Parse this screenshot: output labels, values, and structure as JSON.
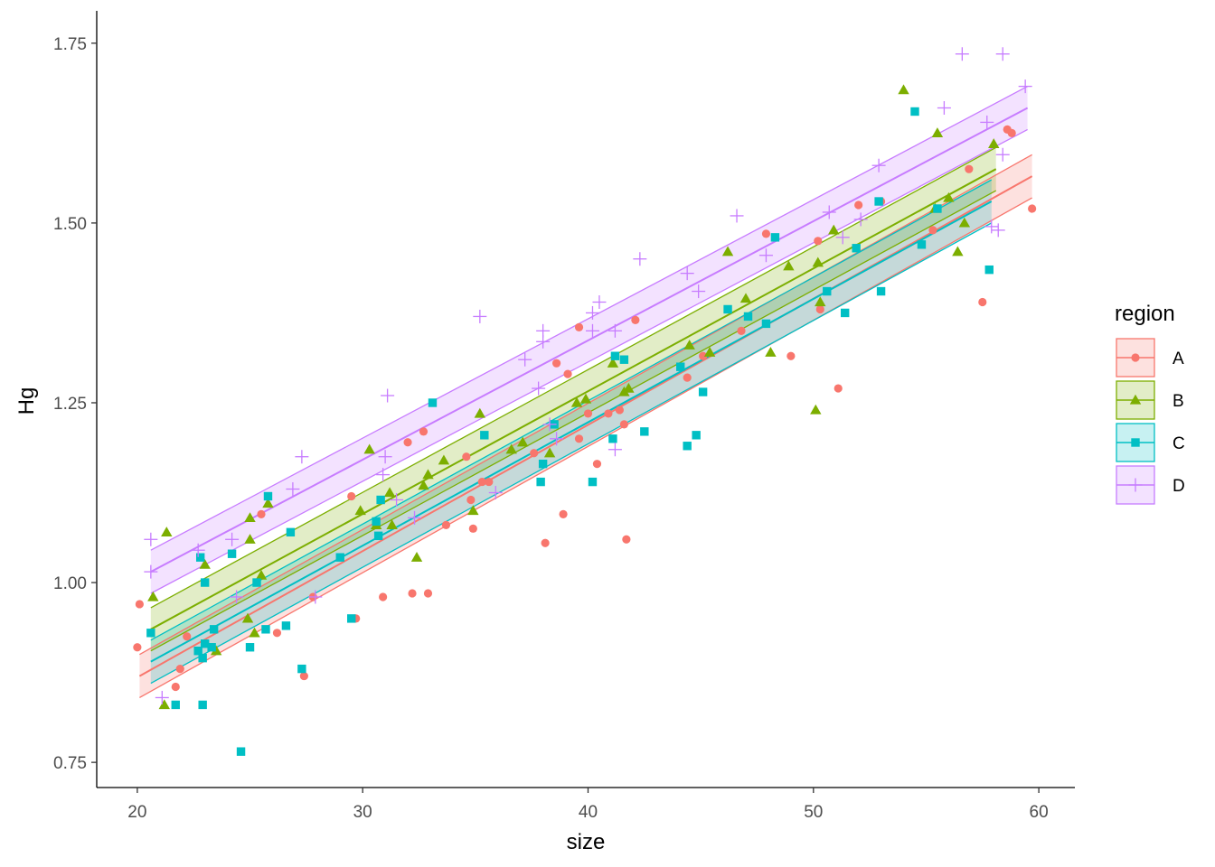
{
  "chart_data": {
    "type": "scatter",
    "xlabel": "size",
    "ylabel": "Hg",
    "xlim": [
      18.2,
      61.6
    ],
    "ylim": [
      0.715,
      1.795
    ],
    "xticks": [
      20,
      30,
      40,
      50,
      60
    ],
    "xtick_labels": [
      "20",
      "30",
      "40",
      "50",
      "60"
    ],
    "yticks": [
      0.75,
      1.0,
      1.25,
      1.5,
      1.75
    ],
    "ytick_labels": [
      "0.75",
      "1.00",
      "1.25",
      "1.50",
      "1.75"
    ],
    "grid": false,
    "legend": {
      "title": "region",
      "position": "right"
    },
    "series": [
      {
        "name": "A",
        "color": "#F8766D",
        "marker": "circle",
        "fit": {
          "x": [
            20.1,
            59.7
          ],
          "y": [
            0.87,
            1.565
          ],
          "band_lower": [
            0.84,
            1.535
          ],
          "band_upper": [
            0.9,
            1.595
          ]
        },
        "points": [
          [
            20.1,
            0.97
          ],
          [
            20.0,
            0.91
          ],
          [
            21.7,
            0.855
          ],
          [
            21.9,
            0.88
          ],
          [
            22.2,
            0.925
          ],
          [
            25.5,
            1.095
          ],
          [
            26.2,
            0.93
          ],
          [
            27.4,
            0.87
          ],
          [
            27.8,
            0.98
          ],
          [
            29.5,
            1.12
          ],
          [
            29.7,
            0.95
          ],
          [
            30.9,
            0.98
          ],
          [
            32.0,
            1.195
          ],
          [
            32.2,
            0.985
          ],
          [
            32.7,
            1.21
          ],
          [
            32.9,
            0.985
          ],
          [
            33.7,
            1.08
          ],
          [
            34.6,
            1.175
          ],
          [
            34.8,
            1.115
          ],
          [
            34.9,
            1.075
          ],
          [
            35.6,
            1.14
          ],
          [
            38.1,
            1.055
          ],
          [
            38.6,
            1.305
          ],
          [
            38.9,
            1.095
          ],
          [
            39.1,
            1.29
          ],
          [
            39.6,
            1.2
          ],
          [
            39.6,
            1.355
          ],
          [
            40.0,
            1.235
          ],
          [
            40.4,
            1.165
          ],
          [
            40.9,
            1.235
          ],
          [
            41.4,
            1.24
          ],
          [
            41.6,
            1.22
          ],
          [
            41.7,
            1.06
          ],
          [
            42.1,
            1.365
          ],
          [
            44.4,
            1.285
          ],
          [
            45.1,
            1.315
          ],
          [
            46.8,
            1.35
          ],
          [
            47.9,
            1.485
          ],
          [
            49.0,
            1.315
          ],
          [
            50.2,
            1.475
          ],
          [
            51.1,
            1.27
          ],
          [
            52.0,
            1.525
          ],
          [
            53.0,
            1.53
          ],
          [
            55.3,
            1.49
          ],
          [
            56.9,
            1.575
          ],
          [
            57.5,
            1.39
          ],
          [
            58.6,
            1.63
          ],
          [
            58.8,
            1.625
          ],
          [
            59.7,
            1.52
          ],
          [
            50.3,
            1.38
          ],
          [
            35.3,
            1.14
          ],
          [
            37.6,
            1.18
          ]
        ]
      },
      {
        "name": "B",
        "color": "#7CAE00",
        "marker": "triangle",
        "fit": {
          "x": [
            20.6,
            58.1
          ],
          "y": [
            0.935,
            1.575
          ],
          "band_lower": [
            0.905,
            1.545
          ],
          "band_upper": [
            0.965,
            1.605
          ]
        },
        "points": [
          [
            20.7,
            0.98
          ],
          [
            21.3,
            1.07
          ],
          [
            21.2,
            0.83
          ],
          [
            23.0,
            1.025
          ],
          [
            23.5,
            0.905
          ],
          [
            24.9,
            0.95
          ],
          [
            25.0,
            1.06
          ],
          [
            25.0,
            1.09
          ],
          [
            25.2,
            0.93
          ],
          [
            25.5,
            1.01
          ],
          [
            25.8,
            1.11
          ],
          [
            29.9,
            1.1
          ],
          [
            30.3,
            1.185
          ],
          [
            30.6,
            1.08
          ],
          [
            31.2,
            1.125
          ],
          [
            31.3,
            1.08
          ],
          [
            32.4,
            1.035
          ],
          [
            32.7,
            1.135
          ],
          [
            32.9,
            1.15
          ],
          [
            33.6,
            1.17
          ],
          [
            34.9,
            1.1
          ],
          [
            35.2,
            1.235
          ],
          [
            36.6,
            1.185
          ],
          [
            37.1,
            1.195
          ],
          [
            38.3,
            1.18
          ],
          [
            39.5,
            1.25
          ],
          [
            39.9,
            1.255
          ],
          [
            41.1,
            1.305
          ],
          [
            41.6,
            1.265
          ],
          [
            41.8,
            1.27
          ],
          [
            44.5,
            1.33
          ],
          [
            45.4,
            1.32
          ],
          [
            46.2,
            1.46
          ],
          [
            47.0,
            1.395
          ],
          [
            48.1,
            1.32
          ],
          [
            48.9,
            1.44
          ],
          [
            50.1,
            1.24
          ],
          [
            50.3,
            1.39
          ],
          [
            50.2,
            1.445
          ],
          [
            50.9,
            1.49
          ],
          [
            54.0,
            1.685
          ],
          [
            55.5,
            1.625
          ],
          [
            56.0,
            1.535
          ],
          [
            56.4,
            1.46
          ],
          [
            56.7,
            1.5
          ],
          [
            58.0,
            1.61
          ],
          [
            55.4,
            1.52
          ]
        ]
      },
      {
        "name": "C",
        "color": "#00BFC4",
        "marker": "square",
        "fit": {
          "x": [
            20.6,
            57.9
          ],
          "y": [
            0.89,
            1.53
          ],
          "band_lower": [
            0.86,
            1.5
          ],
          "band_upper": [
            0.92,
            1.56
          ]
        },
        "points": [
          [
            20.6,
            0.93
          ],
          [
            21.7,
            0.83
          ],
          [
            22.7,
            0.905
          ],
          [
            22.8,
            1.035
          ],
          [
            22.9,
            0.895
          ],
          [
            23.0,
            0.915
          ],
          [
            23.0,
            1.0
          ],
          [
            22.9,
            0.83
          ],
          [
            23.4,
            0.935
          ],
          [
            24.2,
            1.04
          ],
          [
            24.6,
            0.765
          ],
          [
            25.0,
            0.91
          ],
          [
            25.3,
            1.0
          ],
          [
            25.7,
            0.935
          ],
          [
            25.8,
            1.12
          ],
          [
            26.6,
            0.94
          ],
          [
            26.8,
            1.07
          ],
          [
            27.3,
            0.88
          ],
          [
            29.0,
            1.035
          ],
          [
            29.5,
            0.95
          ],
          [
            30.6,
            1.085
          ],
          [
            30.7,
            1.065
          ],
          [
            30.8,
            1.115
          ],
          [
            33.1,
            1.25
          ],
          [
            35.4,
            1.205
          ],
          [
            37.9,
            1.14
          ],
          [
            38.0,
            1.165
          ],
          [
            38.5,
            1.22
          ],
          [
            40.2,
            1.14
          ],
          [
            41.1,
            1.2
          ],
          [
            41.2,
            1.315
          ],
          [
            41.6,
            1.31
          ],
          [
            42.5,
            1.21
          ],
          [
            44.1,
            1.3
          ],
          [
            44.4,
            1.19
          ],
          [
            44.8,
            1.205
          ],
          [
            45.1,
            1.265
          ],
          [
            46.2,
            1.38
          ],
          [
            47.1,
            1.37
          ],
          [
            47.9,
            1.36
          ],
          [
            48.3,
            1.48
          ],
          [
            50.6,
            1.405
          ],
          [
            51.4,
            1.375
          ],
          [
            51.9,
            1.465
          ],
          [
            52.9,
            1.53
          ],
          [
            53.0,
            1.405
          ],
          [
            54.5,
            1.655
          ],
          [
            54.8,
            1.47
          ],
          [
            55.5,
            1.52
          ],
          [
            57.8,
            1.435
          ],
          [
            23.3,
            0.91
          ]
        ]
      },
      {
        "name": "D",
        "color": "#C77CFF",
        "marker": "plus",
        "fit": {
          "x": [
            20.6,
            59.5
          ],
          "y": [
            1.015,
            1.66
          ],
          "band_lower": [
            0.985,
            1.63
          ],
          "band_upper": [
            1.045,
            1.69
          ]
        },
        "points": [
          [
            20.6,
            1.06
          ],
          [
            20.6,
            1.015
          ],
          [
            21.1,
            0.84
          ],
          [
            22.7,
            1.045
          ],
          [
            24.2,
            1.06
          ],
          [
            24.4,
            0.98
          ],
          [
            26.9,
            1.13
          ],
          [
            27.3,
            1.175
          ],
          [
            27.9,
            0.98
          ],
          [
            30.9,
            1.15
          ],
          [
            31.0,
            1.175
          ],
          [
            31.1,
            1.26
          ],
          [
            31.5,
            1.115
          ],
          [
            32.3,
            1.09
          ],
          [
            35.2,
            1.37
          ],
          [
            35.9,
            1.125
          ],
          [
            37.2,
            1.31
          ],
          [
            37.8,
            1.27
          ],
          [
            38.0,
            1.335
          ],
          [
            38.0,
            1.35
          ],
          [
            38.3,
            1.22
          ],
          [
            38.6,
            1.2
          ],
          [
            40.2,
            1.35
          ],
          [
            40.2,
            1.375
          ],
          [
            40.5,
            1.39
          ],
          [
            41.2,
            1.35
          ],
          [
            41.2,
            1.185
          ],
          [
            42.3,
            1.45
          ],
          [
            44.4,
            1.43
          ],
          [
            44.9,
            1.405
          ],
          [
            46.6,
            1.51
          ],
          [
            47.9,
            1.455
          ],
          [
            50.7,
            1.515
          ],
          [
            51.3,
            1.48
          ],
          [
            52.1,
            1.505
          ],
          [
            52.9,
            1.58
          ],
          [
            55.8,
            1.66
          ],
          [
            56.6,
            1.735
          ],
          [
            57.7,
            1.64
          ],
          [
            57.9,
            1.495
          ],
          [
            58.2,
            1.49
          ],
          [
            58.4,
            1.735
          ],
          [
            59.4,
            1.69
          ],
          [
            58.4,
            1.595
          ]
        ]
      }
    ]
  }
}
